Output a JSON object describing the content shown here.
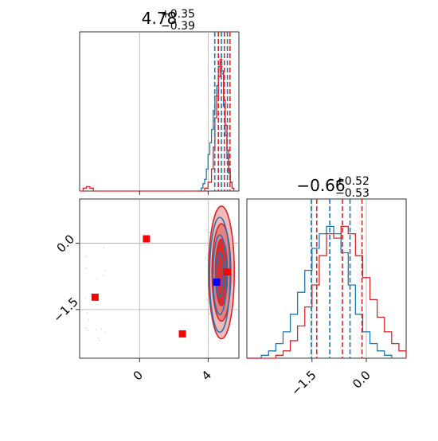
{
  "figure_type": "corner-plot",
  "colors": {
    "blue": "#1f77b4",
    "red": "#d62728",
    "grid": "#b0b0b0",
    "marker_red": "#ff0000",
    "marker_blue": "#0000ff"
  },
  "chart_data": [
    {
      "type": "histogram",
      "panel": "marginal-param-1",
      "title": {
        "main": "4.78",
        "upper": "+0.35",
        "lower": "−0.39"
      },
      "xlim": [
        -3.5,
        5.8
      ],
      "x_ticks": [
        0,
        4
      ],
      "tick_labels_shown": false,
      "grid": true,
      "quantile_lines": {
        "blue": [
          4.39,
          4.78,
          5.13
        ],
        "red": [
          4.6,
          4.95,
          5.28
        ]
      },
      "series": [
        {
          "color": "blue",
          "bins": [
            [
              3.4,
              0.0
            ],
            [
              3.6,
              0.02
            ],
            [
              3.7,
              0.05
            ],
            [
              3.8,
              0.08
            ],
            [
              3.9,
              0.15
            ],
            [
              4.0,
              0.25
            ],
            [
              4.1,
              0.33
            ],
            [
              4.2,
              0.42
            ],
            [
              4.3,
              0.55
            ],
            [
              4.4,
              0.65
            ],
            [
              4.5,
              0.72
            ],
            [
              4.6,
              0.85
            ],
            [
              4.7,
              0.88
            ],
            [
              4.8,
              0.8
            ],
            [
              4.9,
              0.58
            ],
            [
              5.0,
              0.38
            ],
            [
              5.1,
              0.22
            ],
            [
              5.2,
              0.12
            ],
            [
              5.3,
              0.06
            ],
            [
              5.4,
              0.02
            ],
            [
              5.5,
              0.0
            ]
          ]
        },
        {
          "color": "red",
          "bins": [
            [
              -3.5,
              0.0
            ],
            [
              -3.3,
              0.02
            ],
            [
              -3.1,
              0.03
            ],
            [
              -2.9,
              0.02
            ],
            [
              -2.7,
              0.0
            ],
            [
              3.8,
              0.02
            ],
            [
              4.0,
              0.06
            ],
            [
              4.2,
              0.15
            ],
            [
              4.3,
              0.3
            ],
            [
              4.4,
              0.5
            ],
            [
              4.5,
              0.65
            ],
            [
              4.6,
              0.78
            ],
            [
              4.7,
              0.9
            ],
            [
              4.8,
              0.82
            ],
            [
              4.9,
              0.62
            ],
            [
              5.0,
              0.45
            ],
            [
              5.1,
              0.28
            ],
            [
              5.2,
              0.14
            ],
            [
              5.3,
              0.06
            ],
            [
              5.4,
              0.02
            ],
            [
              5.5,
              0.0
            ]
          ]
        }
      ]
    },
    {
      "type": "histogram",
      "panel": "marginal-param-2",
      "title": {
        "main": "−0.66",
        "upper": "+0.52",
        "lower": "−0.53"
      },
      "xlim": [
        -3.3,
        1.1
      ],
      "x_ticks": [
        -1.5,
        0.0
      ],
      "x_tick_labels": [
        "−1.5",
        "0.0"
      ],
      "grid": true,
      "quantile_lines": {
        "blue": [
          -1.52,
          -1.01,
          -0.45
        ],
        "red": [
          -1.37,
          -0.66,
          -0.12
        ]
      },
      "series": [
        {
          "color": "blue",
          "bins": [
            [
              -3.3,
              0.0
            ],
            [
              -2.9,
              0.02
            ],
            [
              -2.7,
              0.05
            ],
            [
              -2.5,
              0.1
            ],
            [
              -2.3,
              0.18
            ],
            [
              -2.1,
              0.3
            ],
            [
              -1.9,
              0.45
            ],
            [
              -1.7,
              0.6
            ],
            [
              -1.5,
              0.75
            ],
            [
              -1.3,
              0.85
            ],
            [
              -1.1,
              0.9
            ],
            [
              -0.9,
              0.85
            ],
            [
              -0.7,
              0.72
            ],
            [
              -0.5,
              0.5
            ],
            [
              -0.3,
              0.3
            ],
            [
              -0.1,
              0.18
            ],
            [
              0.1,
              0.1
            ],
            [
              0.3,
              0.05
            ],
            [
              0.5,
              0.02
            ],
            [
              0.7,
              0.0
            ]
          ]
        },
        {
          "color": "red",
          "bins": [
            [
              -3.3,
              0.0
            ],
            [
              -2.5,
              0.02
            ],
            [
              -2.3,
              0.05
            ],
            [
              -2.1,
              0.12
            ],
            [
              -1.9,
              0.22
            ],
            [
              -1.7,
              0.35
            ],
            [
              -1.5,
              0.5
            ],
            [
              -1.3,
              0.7
            ],
            [
              -1.1,
              0.85
            ],
            [
              -0.9,
              0.82
            ],
            [
              -0.7,
              0.9
            ],
            [
              -0.5,
              0.85
            ],
            [
              -0.3,
              0.7
            ],
            [
              -0.1,
              0.55
            ],
            [
              0.1,
              0.4
            ],
            [
              0.3,
              0.28
            ],
            [
              0.5,
              0.18
            ],
            [
              0.7,
              0.1
            ],
            [
              0.9,
              0.05
            ],
            [
              1.1,
              0.0
            ]
          ]
        }
      ]
    },
    {
      "type": "scatter",
      "panel": "joint-param-1-vs-param-2",
      "xlim": [
        -3.5,
        5.8
      ],
      "ylim": [
        -2.6,
        1.0
      ],
      "x_ticks": [
        0,
        4
      ],
      "x_tick_labels": [
        "0",
        "4"
      ],
      "y_ticks": [
        0.0,
        -1.5
      ],
      "y_tick_labels": [
        "0.0",
        "−1.5"
      ],
      "grid": true,
      "contours": {
        "center": [
          4.78,
          -0.66
        ],
        "red_fill_levels": [
          {
            "rx": 0.75,
            "ry": 1.5
          },
          {
            "rx": 0.55,
            "ry": 1.1
          },
          {
            "rx": 0.35,
            "ry": 0.75
          }
        ],
        "blue_levels": [
          {
            "rx": 0.6,
            "ry": 1.3
          },
          {
            "rx": 0.4,
            "ry": 0.9
          },
          {
            "rx": 0.22,
            "ry": 0.5
          }
        ]
      },
      "markers": [
        {
          "color": "red",
          "x": 0.4,
          "y": 0.1
        },
        {
          "color": "red",
          "x": -2.6,
          "y": -1.22
        },
        {
          "color": "red",
          "x": 2.5,
          "y": -2.05
        },
        {
          "color": "red",
          "x": 5.1,
          "y": -0.65
        },
        {
          "color": "blue",
          "x": 4.5,
          "y": -0.88
        }
      ]
    }
  ]
}
